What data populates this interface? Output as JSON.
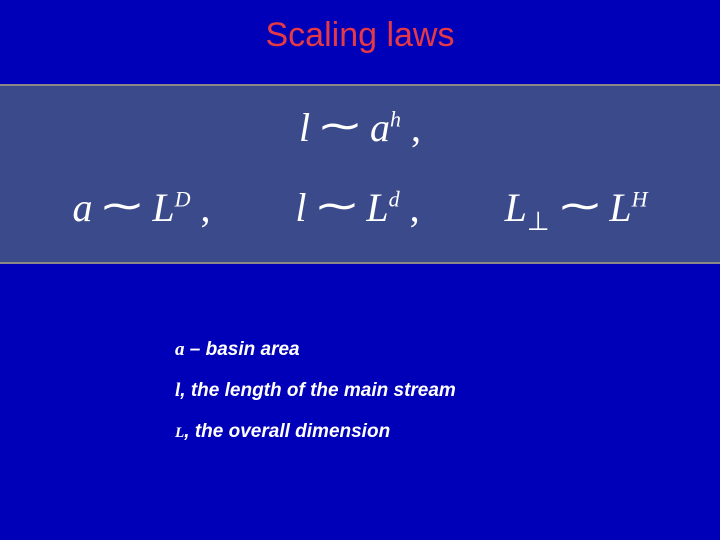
{
  "colors": {
    "background": "#0000b8",
    "title": "#e63946",
    "band_bg": "#3a4a8a",
    "band_border": "#888888",
    "text": "#ffffff"
  },
  "title": "Scaling laws",
  "equations": {
    "row1": {
      "lhs_var": "l",
      "rhs_base": "a",
      "rhs_exp": "h"
    },
    "row2": [
      {
        "lhs_var": "a",
        "rhs_base": "L",
        "rhs_exp": "D"
      },
      {
        "lhs_var": "l",
        "rhs_base": "L",
        "rhs_exp": "d"
      },
      {
        "lhs_var": "L",
        "lhs_sub": "⊥",
        "rhs_base": "L",
        "rhs_exp": "H"
      }
    ]
  },
  "definitions": [
    {
      "var": "a",
      "sep": " – ",
      "text": "basin area"
    },
    {
      "var": "l",
      "sep": ", ",
      "text": "the length of the main stream"
    },
    {
      "var": "L",
      "sep": ", ",
      "text": "the overall dimension",
      "var_small": true
    }
  ],
  "typography": {
    "title_fontsize": 34,
    "eq_fontsize": 40,
    "def_fontsize": 19
  }
}
